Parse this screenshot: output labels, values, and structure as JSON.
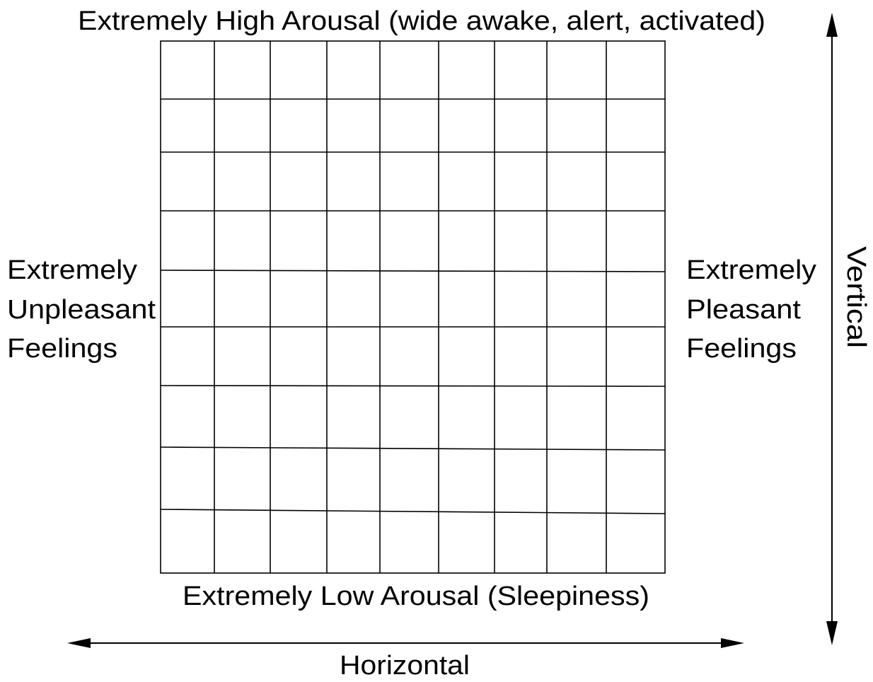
{
  "top_label": "Extremely High Arousal (wide awake, alert, activated)",
  "bottom_label": "Extremely Low Arousal (Sleepiness)",
  "left_label": [
    "Extremely",
    "Unpleasant",
    "Feelings"
  ],
  "right_label": [
    "Extremely",
    "Pleasant",
    "Feelings"
  ],
  "vertical_label": "Vertical",
  "horizontal_label": "Horizontal"
}
